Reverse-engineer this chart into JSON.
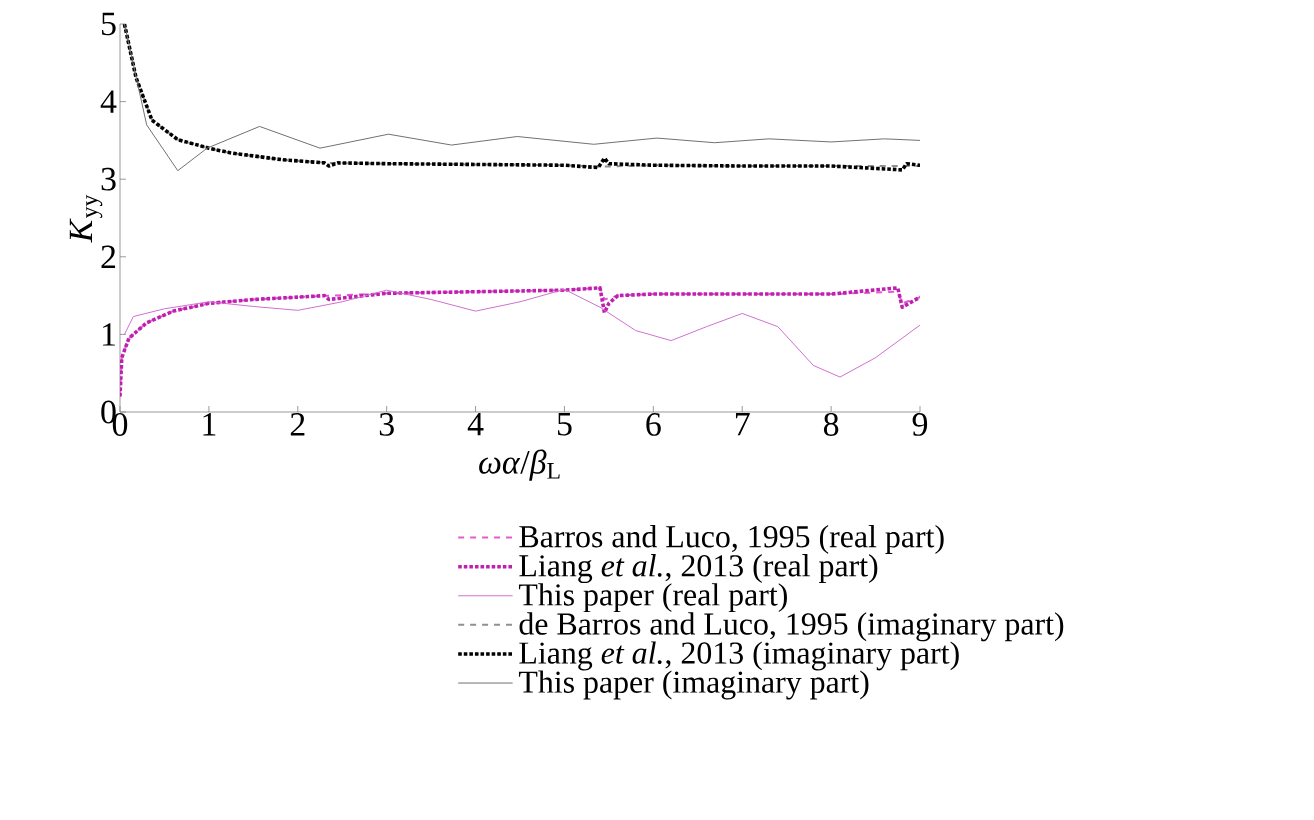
{
  "chart_data": {
    "type": "line",
    "xlabel": "*ωα*/*β*$_{L}$",
    "ylabel": "*K*$_{yy}$",
    "xlim": [
      0,
      9
    ],
    "ylim": [
      0,
      5
    ],
    "xticks": [
      0,
      1,
      2,
      3,
      4,
      5,
      6,
      7,
      8,
      9
    ],
    "yticks": [
      0,
      1,
      2,
      3,
      4,
      5
    ],
    "grid": false,
    "legend": "bottom",
    "marker": "none",
    "series": [
      {
        "name": "Barros and Luco, 1995 (real part)",
        "color": "#e35bd0",
        "line_style": "dashed",
        "x": [
          0,
          0.02,
          0.1,
          0.3,
          0.6,
          1,
          1.5,
          2,
          3,
          4,
          5,
          5.4,
          5.45,
          5.6,
          6,
          7,
          8,
          8.75,
          8.8,
          9
        ],
        "values": [
          0.2,
          0.7,
          0.95,
          1.15,
          1.3,
          1.4,
          1.45,
          1.48,
          1.53,
          1.55,
          1.57,
          1.6,
          1.45,
          1.5,
          1.52,
          1.52,
          1.52,
          1.55,
          1.4,
          1.48
        ]
      },
      {
        "name": "Liang *et al.*, 2013 (real part)",
        "color": "#c020b0",
        "line_style": "dotted",
        "x": [
          0,
          0.02,
          0.1,
          0.3,
          0.6,
          1,
          1.5,
          2,
          2.3,
          2.35,
          3,
          4,
          5,
          5.4,
          5.45,
          5.5,
          5.6,
          6,
          7,
          8,
          8.75,
          8.8,
          9
        ],
        "values": [
          0.2,
          0.7,
          0.95,
          1.15,
          1.3,
          1.4,
          1.45,
          1.48,
          1.5,
          1.45,
          1.53,
          1.55,
          1.57,
          1.6,
          1.28,
          1.4,
          1.5,
          1.52,
          1.52,
          1.52,
          1.6,
          1.35,
          1.48
        ]
      },
      {
        "name": "This paper (real part)",
        "color": "#d070d0",
        "line_style": "solid",
        "x": [
          0.05,
          0.15,
          0.5,
          1,
          1.5,
          2,
          2.5,
          3,
          3.5,
          4,
          4.5,
          5,
          5.4,
          5.8,
          6.2,
          6.6,
          7,
          7.4,
          7.8,
          8.1,
          8.5,
          9
        ],
        "values": [
          1.0,
          1.23,
          1.33,
          1.42,
          1.36,
          1.31,
          1.42,
          1.57,
          1.45,
          1.3,
          1.42,
          1.58,
          1.35,
          1.05,
          0.92,
          1.1,
          1.27,
          1.1,
          0.6,
          0.45,
          0.7,
          1.12
        ]
      },
      {
        "name": "de Barros and Luco, 1995 (imaginary part)",
        "color": "#909090",
        "line_style": "dashed",
        "x": [
          0.05,
          0.18,
          0.36,
          0.65,
          1,
          1.24,
          1.83,
          2.37,
          3,
          4,
          5,
          5.38,
          6,
          7,
          8,
          9
        ],
        "values": [
          5.0,
          4.31,
          3.76,
          3.51,
          3.4,
          3.34,
          3.25,
          3.21,
          3.2,
          3.19,
          3.18,
          3.16,
          3.18,
          3.17,
          3.17,
          3.17
        ]
      },
      {
        "name": "Liang *et al.*, 2013 (imaginary part)",
        "color": "#000000",
        "line_style": "dotted",
        "x": [
          0.05,
          0.18,
          0.36,
          0.65,
          1,
          1.24,
          1.83,
          2.3,
          2.35,
          2.45,
          3,
          4,
          5,
          5.38,
          5.45,
          5.5,
          6,
          7,
          8,
          8.8,
          8.85,
          9
        ],
        "values": [
          5.0,
          4.31,
          3.76,
          3.51,
          3.4,
          3.34,
          3.25,
          3.21,
          3.17,
          3.21,
          3.2,
          3.19,
          3.18,
          3.15,
          3.27,
          3.2,
          3.18,
          3.17,
          3.17,
          3.12,
          3.2,
          3.18
        ]
      },
      {
        "name": "This paper (imaginary part)",
        "color": "#707070",
        "line_style": "solid",
        "x": [
          0.05,
          0.3,
          0.65,
          0.98,
          1.57,
          2.25,
          3.02,
          3.73,
          4.47,
          5.33,
          6.04,
          6.69,
          7.3,
          8.0,
          8.6,
          9
        ],
        "values": [
          5.0,
          3.7,
          3.11,
          3.4,
          3.68,
          3.4,
          3.58,
          3.44,
          3.55,
          3.45,
          3.53,
          3.47,
          3.52,
          3.48,
          3.52,
          3.5
        ]
      }
    ]
  }
}
